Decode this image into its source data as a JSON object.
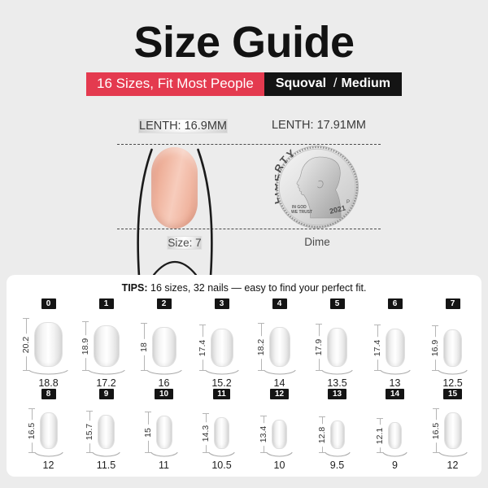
{
  "title": "Size Guide",
  "banner": {
    "left_text": "16 Sizes, Fit Most People",
    "shape": "Squoval",
    "divider": "/",
    "fit": "Medium"
  },
  "comparison": {
    "nail_length_label": "LENTH: 16.9MM",
    "coin_length_label": "LENTH: 17.91MM",
    "nail_caption": "Size: 7",
    "coin_caption": "Dime",
    "coin": {
      "liberty": "LIBERTY",
      "motto_line1": "IN GOD",
      "motto_line2": "WE TRUST",
      "year": "2021",
      "mint_mark": "P"
    }
  },
  "tips": {
    "label": "TIPS:",
    "text": "16 sizes, 32 nails — easy to find your perfect fit."
  },
  "sizes": [
    {
      "label": "0",
      "length": "20.2",
      "width": "18.8"
    },
    {
      "label": "1",
      "length": "18.9",
      "width": "17.2"
    },
    {
      "label": "2",
      "length": "18",
      "width": "16"
    },
    {
      "label": "3",
      "length": "17.4",
      "width": "15.2"
    },
    {
      "label": "4",
      "length": "18.2",
      "width": "14"
    },
    {
      "label": "5",
      "length": "17.9",
      "width": "13.5"
    },
    {
      "label": "6",
      "length": "17.4",
      "width": "13"
    },
    {
      "label": "7",
      "length": "16.9",
      "width": "12.5"
    },
    {
      "label": "8",
      "length": "16.5",
      "width": "12"
    },
    {
      "label": "9",
      "length": "15.7",
      "width": "11.5"
    },
    {
      "label": "10",
      "length": "15",
      "width": "11"
    },
    {
      "label": "11",
      "length": "14.3",
      "width": "10.5"
    },
    {
      "label": "12",
      "length": "13.4",
      "width": "10"
    },
    {
      "label": "13",
      "length": "12.8",
      "width": "9.5"
    },
    {
      "label": "14",
      "length": "12.1",
      "width": "9"
    },
    {
      "label": "15",
      "length": "16.5",
      "width": "12"
    }
  ],
  "colors": {
    "background": "#ECECEC",
    "accent_red": "#E43A4F",
    "banner_black": "#141414",
    "badge_black": "#141414",
    "nail_pink": "#F1BBA8"
  }
}
